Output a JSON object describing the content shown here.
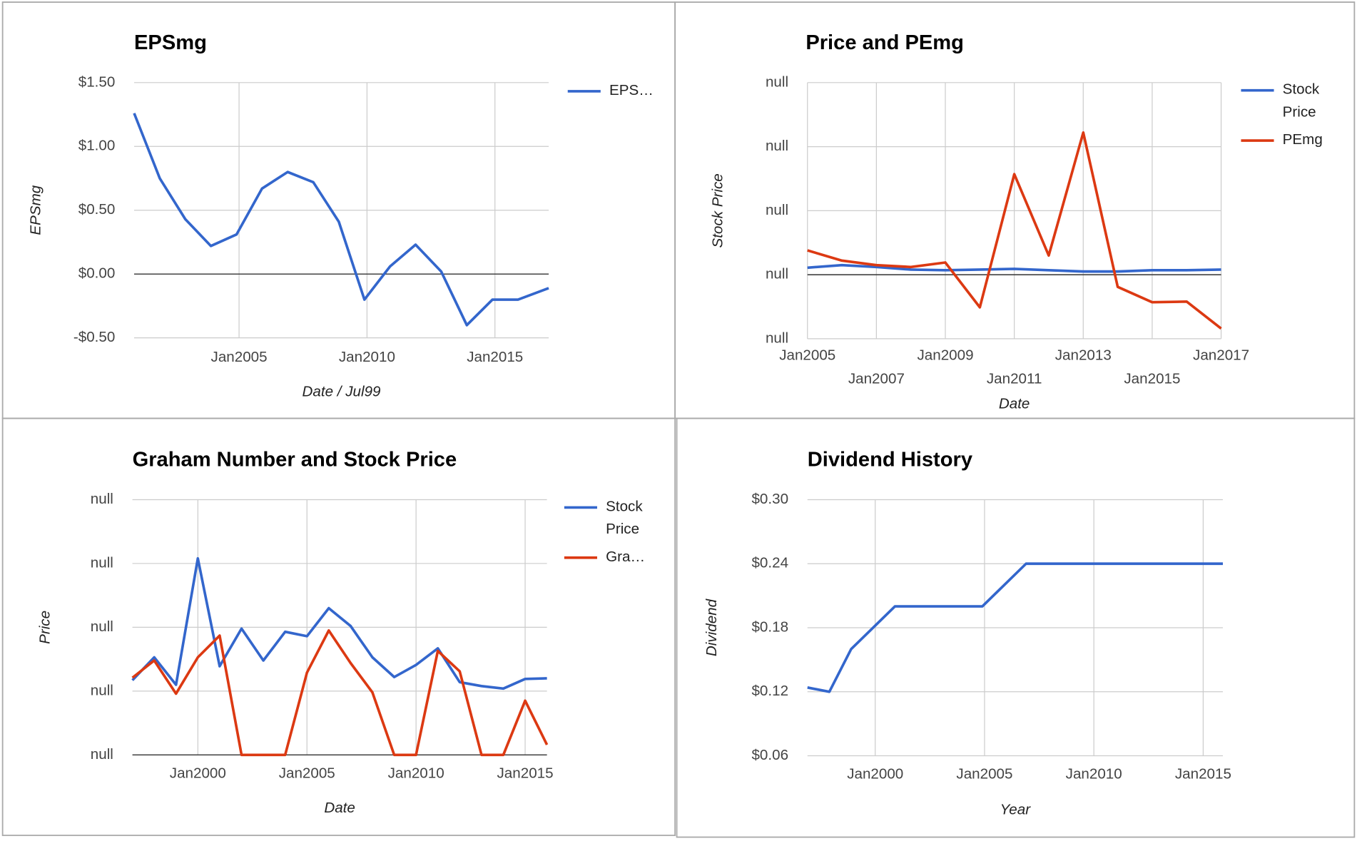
{
  "chart_data": [
    {
      "type": "line",
      "title": "EPSmg",
      "y_label": "EPSmg",
      "x_label": "Date / Jul99",
      "xlim": [
        2000.9,
        2017.1
      ],
      "xticks": [
        {
          "value": 2005,
          "label": "Jan2005"
        },
        {
          "value": 2010,
          "label": "Jan2010"
        },
        {
          "value": 2015,
          "label": "Jan2015"
        }
      ],
      "ylim": [
        -0.5,
        1.5
      ],
      "yticks": [
        {
          "value": -0.5,
          "label": "-$0.50"
        },
        {
          "value": 0,
          "label": "$0.00"
        },
        {
          "value": 0.5,
          "label": "$0.50"
        },
        {
          "value": 1,
          "label": "$1.00"
        },
        {
          "value": 1.5,
          "label": "$1.50"
        }
      ],
      "grid": true,
      "x": [
        2000.9,
        2001.9,
        2002.9,
        2003.9,
        2004.9,
        2005.9,
        2006.9,
        2007.9,
        2008.9,
        2009.9,
        2010.9,
        2011.9,
        2012.9,
        2013.9,
        2014.9,
        2015.9,
        2017.1
      ],
      "series": [
        {
          "name": "EPS…",
          "color": "#3366cc",
          "values": [
            1.26,
            0.75,
            0.43,
            0.22,
            0.31,
            0.67,
            0.8,
            0.72,
            0.41,
            -0.2,
            0.06,
            0.23,
            0.02,
            -0.4,
            -0.2,
            -0.2,
            -0.11
          ]
        }
      ]
    },
    {
      "type": "line",
      "title": "Price and PEmg",
      "y_label": "Stock Price",
      "x_label": "Date",
      "xlim": [
        2005,
        2017
      ],
      "xticks": [
        {
          "value": 2005,
          "label": "Jan2005"
        },
        {
          "value": 2007,
          "label": "Jan2007"
        },
        {
          "value": 2009,
          "label": "Jan2009"
        },
        {
          "value": 2011,
          "label": "Jan2011"
        },
        {
          "value": 2013,
          "label": "Jan2013"
        },
        {
          "value": 2015,
          "label": "Jan2015"
        },
        {
          "value": 2017,
          "label": "Jan2017"
        }
      ],
      "ylim": [
        -1,
        3
      ],
      "yticks": [
        {
          "value": -1,
          "label": "null"
        },
        {
          "value": 0,
          "label": "null"
        },
        {
          "value": 1,
          "label": "null"
        },
        {
          "value": 2,
          "label": "null"
        },
        {
          "value": 3,
          "label": "null"
        }
      ],
      "grid": true,
      "x": [
        2005,
        2006,
        2007,
        2008,
        2009,
        2010,
        2011,
        2012,
        2013,
        2014,
        2015,
        2016,
        2017
      ],
      "series": [
        {
          "name": "Stock Price",
          "color": "#3366cc",
          "values": [
            0.11,
            0.15,
            0.12,
            0.08,
            0.07,
            0.08,
            0.09,
            0.07,
            0.05,
            0.05,
            0.07,
            0.07,
            0.08
          ]
        },
        {
          "name": "PEmg",
          "color": "#dc3912",
          "values": [
            0.38,
            0.22,
            0.15,
            0.12,
            0.19,
            -0.51,
            1.57,
            0.3,
            2.22,
            -0.19,
            -0.43,
            -0.42,
            -0.84
          ]
        }
      ]
    },
    {
      "type": "line",
      "title": "Graham Number and Stock Price",
      "y_label": "Price",
      "x_label": "Date",
      "xlim": [
        1997,
        2016
      ],
      "xticks": [
        {
          "value": 2000,
          "label": "Jan2000"
        },
        {
          "value": 2005,
          "label": "Jan2005"
        },
        {
          "value": 2010,
          "label": "Jan2010"
        },
        {
          "value": 2015,
          "label": "Jan2015"
        }
      ],
      "ylim": [
        0,
        4
      ],
      "yticks": [
        {
          "value": 0,
          "label": "null"
        },
        {
          "value": 1,
          "label": "null"
        },
        {
          "value": 2,
          "label": "null"
        },
        {
          "value": 3,
          "label": "null"
        },
        {
          "value": 4,
          "label": "null"
        }
      ],
      "grid": true,
      "x": [
        1997,
        1998,
        1999,
        2000,
        2001,
        2002,
        2003,
        2004,
        2005,
        2006,
        2007,
        2008,
        2009,
        2010,
        2011,
        2012,
        2013,
        2014,
        2015,
        2016
      ],
      "series": [
        {
          "name": "Stock Price",
          "color": "#3366cc",
          "values": [
            1.17,
            1.53,
            1.1,
            3.08,
            1.39,
            1.98,
            1.48,
            1.93,
            1.86,
            2.3,
            2.02,
            1.53,
            1.22,
            1.41,
            1.67,
            1.14,
            1.08,
            1.04,
            1.19,
            1.2
          ]
        },
        {
          "name": "Gra…",
          "color": "#dc3912",
          "values": [
            1.21,
            1.48,
            0.96,
            1.53,
            1.87,
            0,
            0,
            0,
            1.29,
            1.95,
            1.44,
            0.98,
            0,
            0,
            1.63,
            1.31,
            0,
            0,
            0.85,
            0.16
          ]
        }
      ]
    },
    {
      "type": "line",
      "title": "Dividend History",
      "y_label": "Dividend",
      "x_label": "Year",
      "xlim": [
        1996.9,
        2015.9
      ],
      "xticks": [
        {
          "value": 2000,
          "label": "Jan2000"
        },
        {
          "value": 2005,
          "label": "Jan2005"
        },
        {
          "value": 2010,
          "label": "Jan2010"
        },
        {
          "value": 2015,
          "label": "Jan2015"
        }
      ],
      "ylim": [
        0.06,
        0.3
      ],
      "yticks": [
        {
          "value": 0.06,
          "label": "$0.06"
        },
        {
          "value": 0.12,
          "label": "$0.12"
        },
        {
          "value": 0.18,
          "label": "$0.18"
        },
        {
          "value": 0.24,
          "label": "$0.24"
        },
        {
          "value": 0.3,
          "label": "$0.30"
        }
      ],
      "grid": true,
      "legend": false,
      "x": [
        1996.9,
        1997.9,
        1998.9,
        2000.9,
        2004.9,
        2006.9,
        2015.9
      ],
      "series": [
        {
          "name": "Dividend",
          "color": "#3366cc",
          "values": [
            0.124,
            0.12,
            0.16,
            0.2,
            0.2,
            0.24,
            0.24
          ]
        }
      ]
    }
  ]
}
